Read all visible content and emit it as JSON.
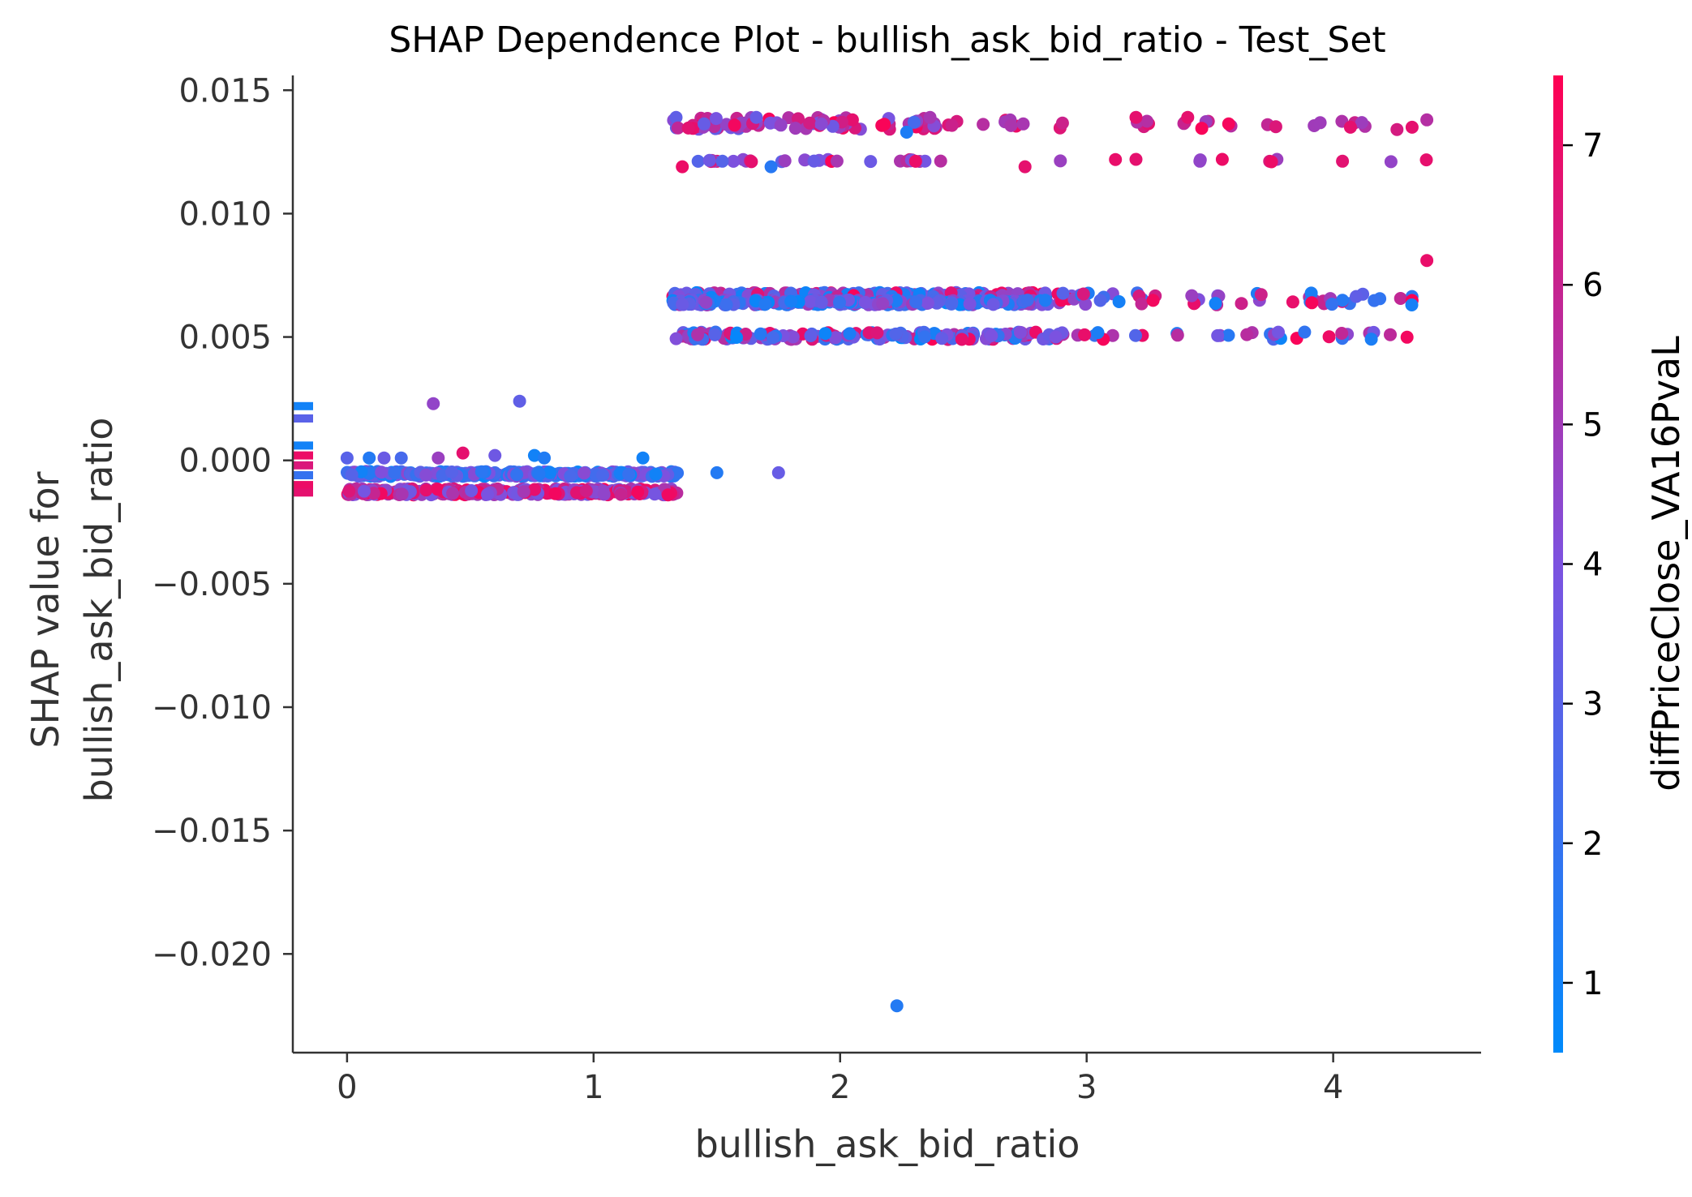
{
  "chart_data": {
    "type": "scatter",
    "title": "SHAP Dependence Plot - bullish_ask_bid_ratio - Test_Set",
    "xlabel": "bullish_ask_bid_ratio",
    "ylabel_lines": [
      "SHAP value for",
      "bullish_ask_bid_ratio"
    ],
    "xlim": [
      -0.22,
      4.6
    ],
    "ylim": [
      -0.024,
      0.0156
    ],
    "x_ticks": [
      0,
      1,
      2,
      3,
      4
    ],
    "x_tick_labels": [
      "0",
      "1",
      "2",
      "3",
      "4"
    ],
    "y_ticks": [
      0.015,
      0.01,
      0.005,
      0.0,
      -0.005,
      -0.01,
      -0.015,
      -0.02
    ],
    "y_tick_labels": [
      "0.015",
      "0.010",
      "0.005",
      "0.000",
      "−0.005",
      "−0.010",
      "−0.015",
      "−0.020"
    ],
    "grid": false,
    "colorbar": {
      "label": "diffPriceClose_VA16PvaL",
      "range": [
        0.5,
        7.5
      ],
      "ticks": [
        1,
        2,
        3,
        4,
        5,
        6,
        7
      ],
      "tick_labels": [
        "1",
        "2",
        "3",
        "4",
        "5",
        "6",
        "7"
      ],
      "colors": [
        "#008afb",
        "#7c52e0",
        "#ff0052"
      ]
    },
    "nan_markers": [
      {
        "y": 0.0022,
        "c": 1.0
      },
      {
        "y": 0.0017,
        "c": 3.0
      },
      {
        "y": 0.0006,
        "c": 1.0
      },
      {
        "y": 0.0002,
        "c": 7.0
      },
      {
        "y": -0.0002,
        "c": 6.5
      },
      {
        "y": -0.0006,
        "c": 2.0
      },
      {
        "y": -0.001,
        "c": 7.0
      },
      {
        "y": -0.0013,
        "c": 6.8
      }
    ],
    "points": [
      {
        "x": 0.35,
        "y": 0.0023,
        "c": 4.6
      },
      {
        "x": 0.7,
        "y": 0.0024,
        "c": 3.2
      },
      {
        "x": 0.47,
        "y": 0.0003,
        "c": 6.8
      },
      {
        "x": 0.0,
        "y": 0.0001,
        "c": 3.0
      },
      {
        "x": 0.09,
        "y": 0.0001,
        "c": 1.5
      },
      {
        "x": 0.15,
        "y": 0.0001,
        "c": 3.5
      },
      {
        "x": 0.22,
        "y": 0.0001,
        "c": 2.5
      },
      {
        "x": 0.37,
        "y": 0.0001,
        "c": 4.8
      },
      {
        "x": 0.6,
        "y": 0.0002,
        "c": 3.6
      },
      {
        "x": 0.76,
        "y": 0.0002,
        "c": 1.0
      },
      {
        "x": 0.8,
        "y": 0.0001,
        "c": 1.4
      },
      {
        "x": 1.2,
        "y": 0.0001,
        "c": 1.0
      },
      {
        "x": 1.5,
        "y": -0.0005,
        "c": 1.5
      },
      {
        "x": 1.75,
        "y": -0.0005,
        "c": 3.4
      },
      {
        "x": 2.23,
        "y": -0.0221,
        "c": 1.5
      },
      {
        "x": 1.72,
        "y": 0.0119,
        "c": 1.6
      },
      {
        "x": 2.75,
        "y": 0.0119,
        "c": 6.8
      },
      {
        "x": 1.36,
        "y": 0.0119,
        "c": 7.0
      },
      {
        "x": 3.2,
        "y": 0.0122,
        "c": 6.8
      },
      {
        "x": 3.75,
        "y": 0.0121,
        "c": 7.0
      },
      {
        "x": 3.55,
        "y": 0.0122,
        "c": 7.0
      },
      {
        "x": 4.38,
        "y": 0.0081,
        "c": 6.9
      },
      {
        "x": 3.2,
        "y": 0.0139,
        "c": 6.8
      },
      {
        "x": 4.38,
        "y": 0.0138,
        "c": 5.5
      },
      {
        "x": 3.41,
        "y": 0.0139,
        "c": 6.8
      },
      {
        "x": 1.66,
        "y": 0.0139,
        "c": 3.4
      },
      {
        "x": 4.07,
        "y": 0.0135,
        "c": 6.8
      },
      {
        "x": 4.32,
        "y": 0.0135,
        "c": 6.8
      },
      {
        "x": 2.3,
        "y": 0.0137,
        "c": 2.5
      },
      {
        "x": 2.27,
        "y": 0.0133,
        "c": 1.3
      }
    ],
    "bands": [
      {
        "x0": 0.0,
        "x1": 1.34,
        "y0": -0.00045,
        "y1": -0.00065,
        "n": 320,
        "cmin": 0.6,
        "cmax": 4.5,
        "seed": 11
      },
      {
        "x0": 0.0,
        "x1": 1.34,
        "y0": -0.00115,
        "y1": -0.0014,
        "n": 320,
        "cmin": 3.5,
        "cmax": 7.4,
        "seed": 12
      },
      {
        "x0": 1.32,
        "x1": 2.85,
        "y0": 0.0066,
        "y1": 0.0068,
        "n": 230,
        "cmin": 0.6,
        "cmax": 7.4,
        "seed": 21
      },
      {
        "x0": 1.32,
        "x1": 2.85,
        "y0": 0.0063,
        "y1": 0.0065,
        "n": 230,
        "cmin": 0.6,
        "cmax": 5.0,
        "seed": 22
      },
      {
        "x0": 1.32,
        "x1": 2.85,
        "y0": 0.0049,
        "y1": 0.0052,
        "n": 170,
        "cmin": 0.6,
        "cmax": 7.4,
        "seed": 23
      },
      {
        "x0": 2.85,
        "x1": 4.38,
        "y0": 0.0063,
        "y1": 0.0068,
        "n": 55,
        "cmin": 0.6,
        "cmax": 7.4,
        "seed": 24
      },
      {
        "x0": 2.85,
        "x1": 4.38,
        "y0": 0.0049,
        "y1": 0.0052,
        "n": 38,
        "cmin": 0.6,
        "cmax": 7.4,
        "seed": 25
      },
      {
        "x0": 1.32,
        "x1": 2.4,
        "y0": 0.0134,
        "y1": 0.0139,
        "n": 90,
        "cmin": 3.0,
        "cmax": 7.4,
        "seed": 31
      },
      {
        "x0": 2.4,
        "x1": 4.38,
        "y0": 0.0134,
        "y1": 0.0138,
        "n": 32,
        "cmin": 4.5,
        "cmax": 7.4,
        "seed": 32
      },
      {
        "x0": 1.36,
        "x1": 2.4,
        "y0": 0.0121,
        "y1": 0.0122,
        "n": 30,
        "cmin": 2.8,
        "cmax": 7.4,
        "seed": 33
      },
      {
        "x0": 2.4,
        "x1": 4.38,
        "y0": 0.0121,
        "y1": 0.0122,
        "n": 10,
        "cmin": 4.5,
        "cmax": 7.4,
        "seed": 34
      }
    ]
  }
}
